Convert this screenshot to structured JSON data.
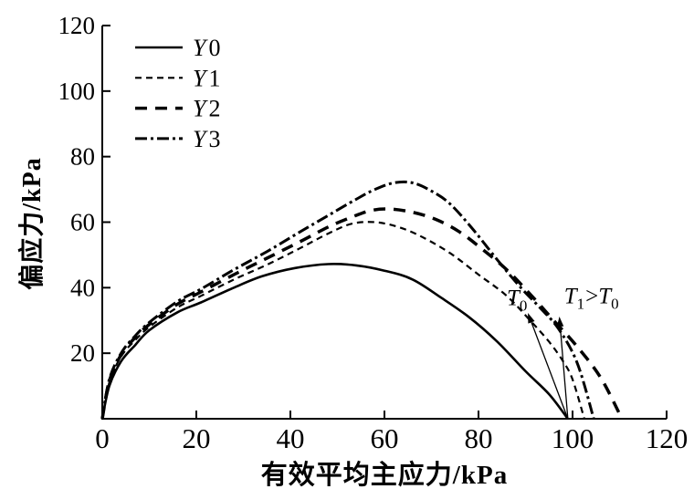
{
  "page": {
    "background": "#ffffff"
  },
  "chart_data": {
    "type": "line",
    "title": "",
    "xlabel": "有效平均主应力/kPa",
    "ylabel": "偏应力/kPa",
    "xlim": [
      0,
      120
    ],
    "ylim": [
      0,
      120
    ],
    "xticks": [
      0,
      20,
      40,
      60,
      80,
      100,
      120
    ],
    "yticks": [
      20,
      40,
      60,
      80,
      100,
      120
    ],
    "grid": false,
    "legend_position": "top-left",
    "axis_color": "#000000",
    "background_color": "#ffffff",
    "series": [
      {
        "name": "Y0",
        "legend_segments": [
          {
            "text": "Y",
            "italic": true
          },
          {
            "text": "0"
          }
        ],
        "dash": [],
        "width": 2.6,
        "color": "#000000",
        "points": [
          [
            0,
            0
          ],
          [
            1.5,
            10
          ],
          [
            4,
            17.5
          ],
          [
            7,
            22.5
          ],
          [
            10,
            27
          ],
          [
            16,
            32.5
          ],
          [
            21,
            35.5
          ],
          [
            28,
            40
          ],
          [
            34,
            43.5
          ],
          [
            41,
            46
          ],
          [
            48,
            47.2
          ],
          [
            54,
            46.8
          ],
          [
            60,
            45.2
          ],
          [
            66,
            42.5
          ],
          [
            72,
            37
          ],
          [
            78,
            31
          ],
          [
            84,
            23.5
          ],
          [
            90,
            14.5
          ],
          [
            95,
            7.5
          ],
          [
            99,
            0
          ]
        ]
      },
      {
        "name": "Y1",
        "legend_segments": [
          {
            "text": "Y",
            "italic": true
          },
          {
            "text": "1"
          }
        ],
        "dash": [
          7,
          5
        ],
        "width": 2.2,
        "color": "#000000",
        "points": [
          [
            0,
            0
          ],
          [
            1.5,
            11
          ],
          [
            4,
            19
          ],
          [
            7,
            24
          ],
          [
            10,
            28
          ],
          [
            16,
            34
          ],
          [
            21,
            37.5
          ],
          [
            28,
            42.5
          ],
          [
            35,
            47
          ],
          [
            42,
            52
          ],
          [
            48,
            56.5
          ],
          [
            53,
            59.5
          ],
          [
            58,
            60
          ],
          [
            63,
            58.5
          ],
          [
            68,
            55.5
          ],
          [
            74,
            50.5
          ],
          [
            80,
            44
          ],
          [
            86,
            37.5
          ],
          [
            91,
            30
          ],
          [
            95,
            23.5
          ],
          [
            98,
            17.5
          ],
          [
            100,
            12
          ],
          [
            102.5,
            0
          ]
        ]
      },
      {
        "name": "Y2",
        "legend_segments": [
          {
            "text": "Y",
            "italic": true
          },
          {
            "text": "2"
          }
        ],
        "dash": [
          13,
          9
        ],
        "width": 3.5,
        "color": "#000000",
        "points": [
          [
            0,
            0
          ],
          [
            1.5,
            11.5
          ],
          [
            4,
            19.5
          ],
          [
            7,
            24.8
          ],
          [
            10,
            28.8
          ],
          [
            16,
            35
          ],
          [
            21,
            38.7
          ],
          [
            28,
            44
          ],
          [
            35,
            49
          ],
          [
            42,
            54
          ],
          [
            48,
            58.5
          ],
          [
            53,
            61.5
          ],
          [
            57,
            63.5
          ],
          [
            61,
            64
          ],
          [
            66,
            63
          ],
          [
            71,
            60.8
          ],
          [
            76,
            57
          ],
          [
            81,
            51.5
          ],
          [
            86,
            45.5
          ],
          [
            91,
            38
          ],
          [
            96,
            30
          ],
          [
            101,
            22
          ],
          [
            106,
            12.5
          ],
          [
            110.5,
            0
          ]
        ]
      },
      {
        "name": "Y3",
        "legend_segments": [
          {
            "text": "Y",
            "italic": true
          },
          {
            "text": "3"
          }
        ],
        "dash": [
          13,
          4,
          3,
          4
        ],
        "width": 3,
        "color": "#000000",
        "points": [
          [
            0,
            0
          ],
          [
            1.5,
            12
          ],
          [
            4,
            20
          ],
          [
            7,
            25.3
          ],
          [
            10,
            29.4
          ],
          [
            16,
            35.8
          ],
          [
            21,
            39.6
          ],
          [
            28,
            45.5
          ],
          [
            35,
            51
          ],
          [
            42,
            57
          ],
          [
            48,
            62
          ],
          [
            54,
            67
          ],
          [
            58,
            70
          ],
          [
            62,
            72
          ],
          [
            66,
            72
          ],
          [
            70,
            69.5
          ],
          [
            74,
            65.5
          ],
          [
            79,
            57.5
          ],
          [
            84,
            48.5
          ],
          [
            89,
            40
          ],
          [
            93,
            34
          ],
          [
            97,
            27.5
          ],
          [
            101,
            17
          ],
          [
            104.5,
            0
          ]
        ]
      }
    ],
    "annotations": [
      {
        "name": "T0",
        "segments": [
          {
            "text": "T",
            "italic": true
          },
          {
            "text": "0",
            "sub": true
          }
        ],
        "x": 88.2,
        "y": 34.6,
        "anchor": "middle"
      },
      {
        "name": "T1-gt-T0",
        "segments": [
          {
            "text": "T",
            "italic": true
          },
          {
            "text": "1",
            "sub": true
          },
          {
            "text": ">"
          },
          {
            "text": "T",
            "italic": true
          },
          {
            "text": "0",
            "sub": true
          }
        ],
        "x": 98.2,
        "y": 35.2,
        "anchor": "start"
      }
    ],
    "arrows": [
      {
        "name": "arrow-T0",
        "from": [
          99,
          0
        ],
        "to": [
          90.5,
          32.3
        ]
      },
      {
        "name": "arrow-T1",
        "from": [
          99,
          0
        ],
        "to": [
          97.2,
          31.2
        ]
      }
    ]
  }
}
